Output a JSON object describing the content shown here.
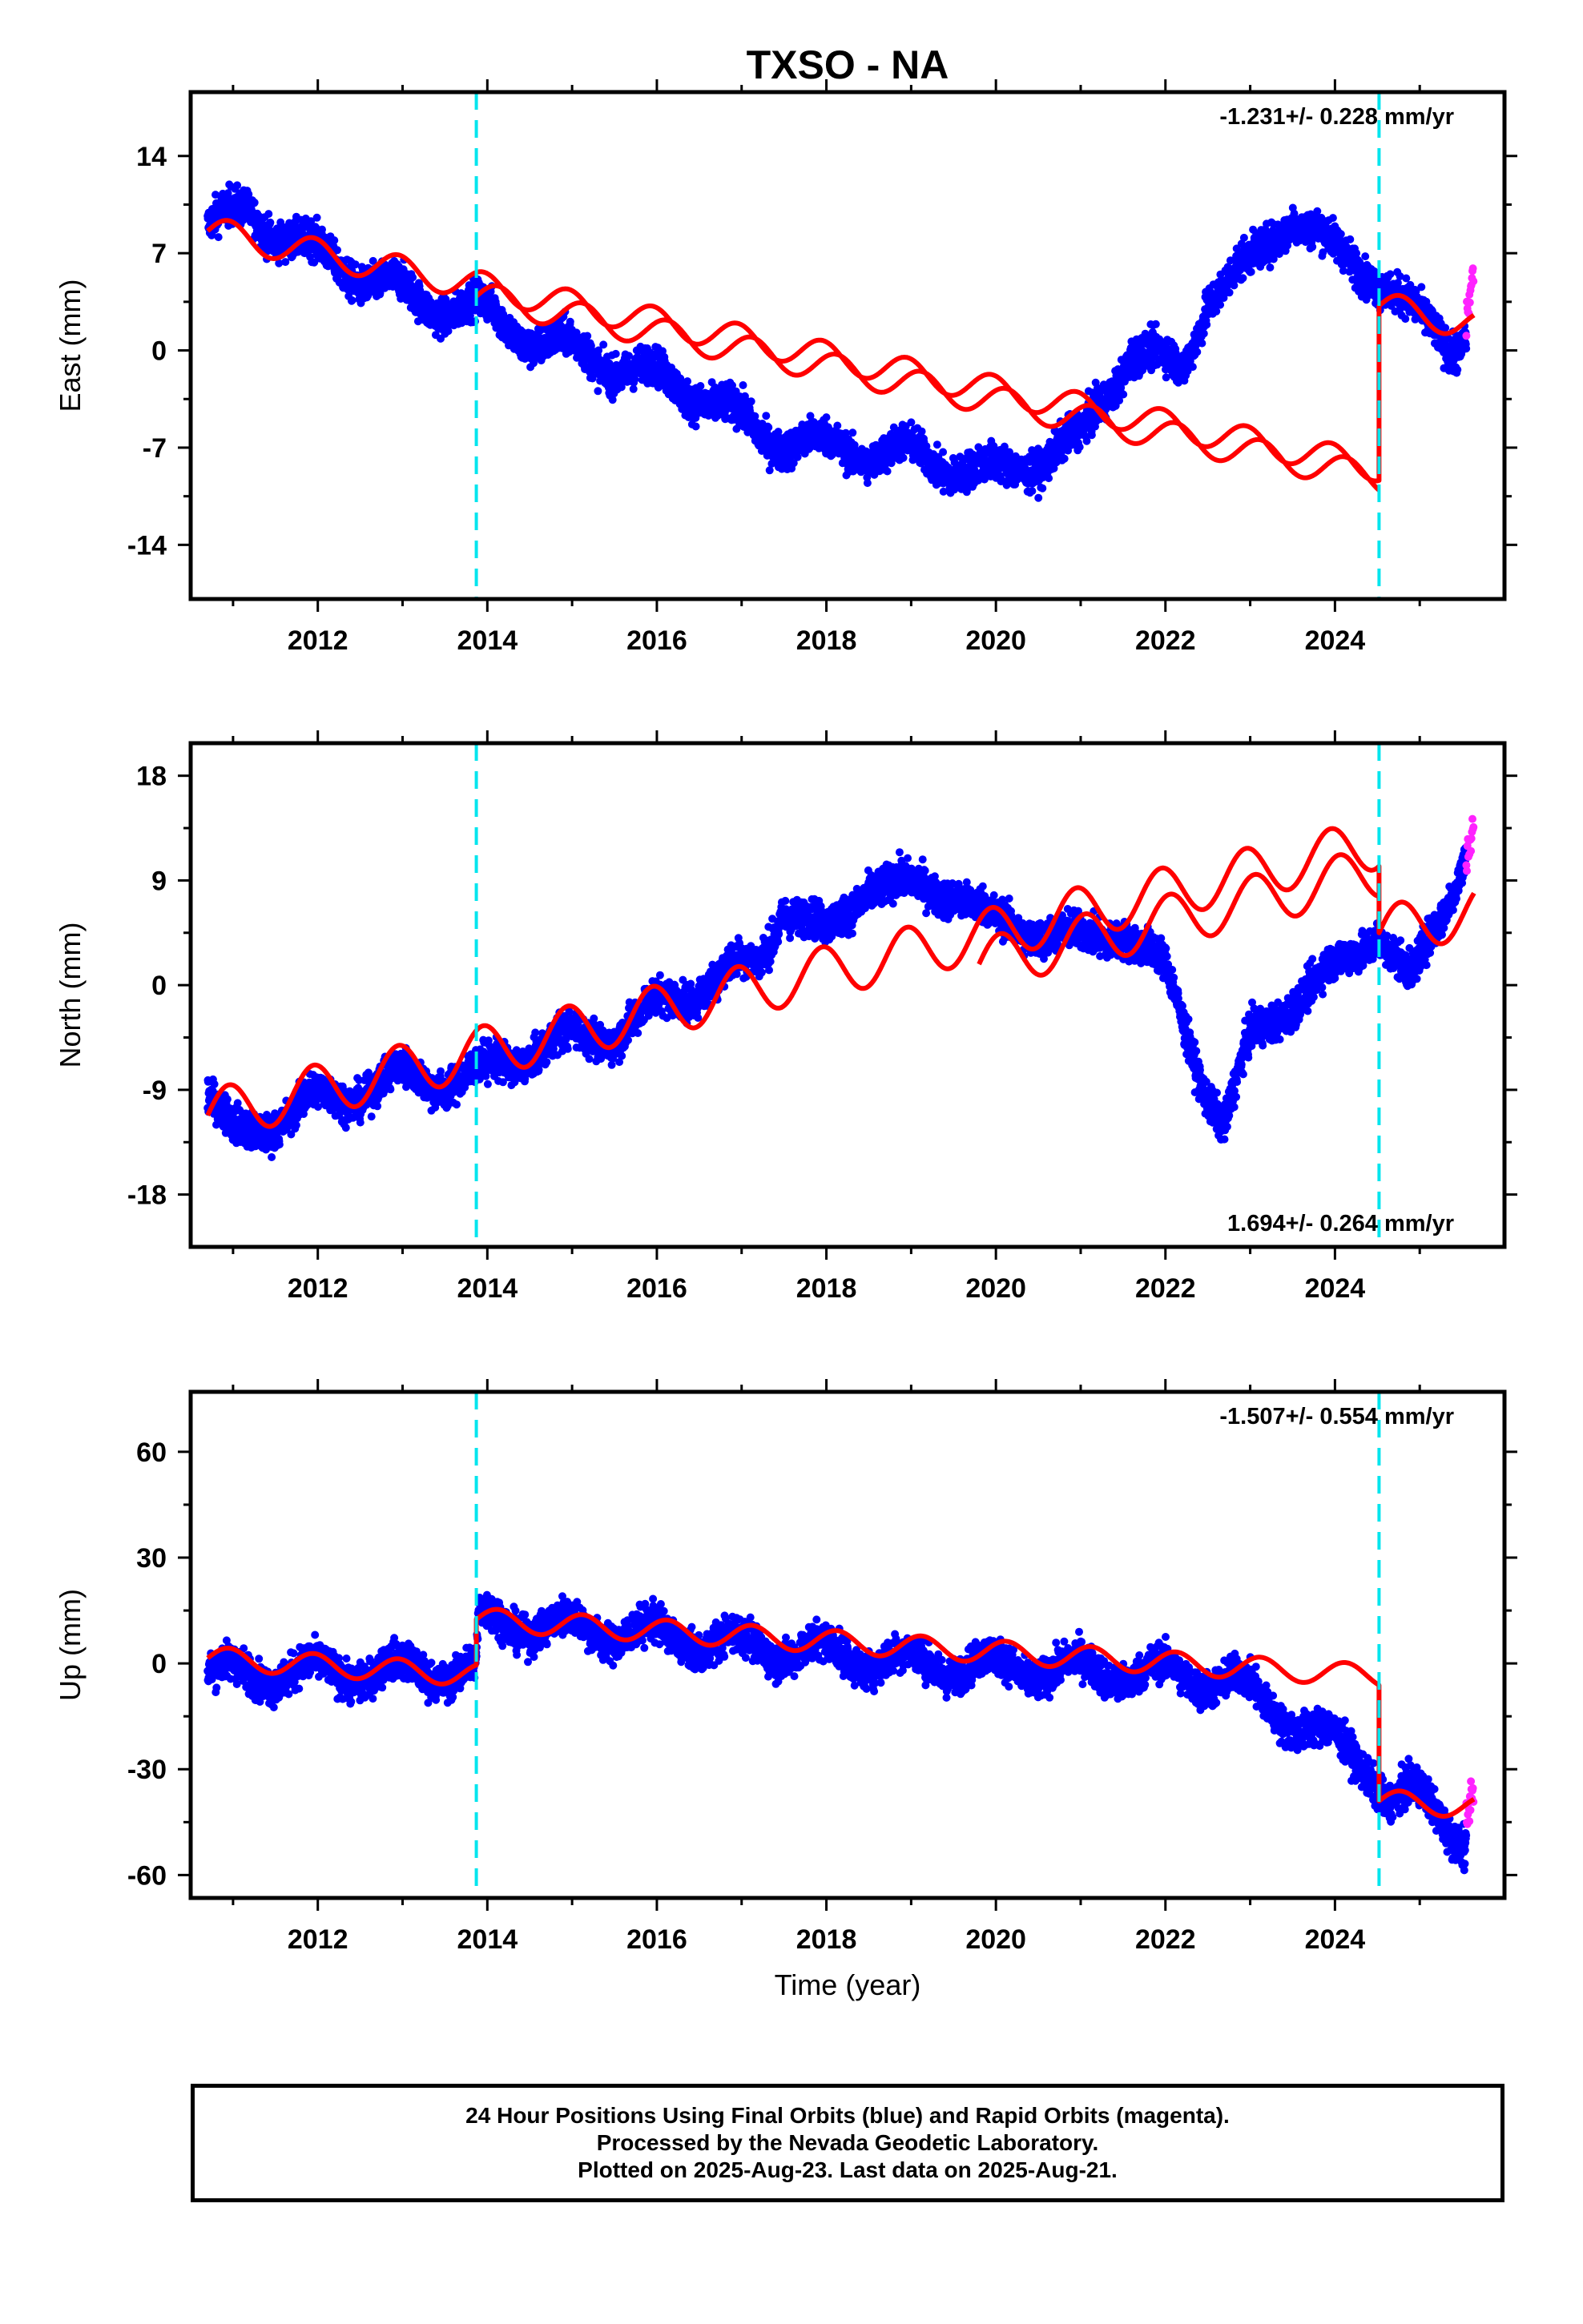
{
  "title": "TXSO - NA",
  "colors": {
    "final": "#0000ff",
    "rapid": "#ff22ff",
    "model": "#ff0000",
    "event": "#00e5ee",
    "frame": "#000000"
  },
  "xlabel": "Time (year)",
  "x_ticks": [
    "2012",
    "2014",
    "2016",
    "2018",
    "2020",
    "2022",
    "2024"
  ],
  "events": [
    2013.87,
    2024.52
  ],
  "chart_data": [
    {
      "type": "scatter",
      "component": "east",
      "ylabel": "East (mm)",
      "rate_label": "-1.231+/- 0.228 mm/yr",
      "rate_position": "top-right",
      "xlim": [
        2010.5,
        2026.0
      ],
      "ylim": [
        -17.9,
        18.6
      ],
      "y_ticks": [
        "14",
        "7",
        "0",
        "-7",
        "-14"
      ],
      "y_tick_values": [
        14,
        7,
        0,
        -7,
        -14
      ],
      "final_orbits_trend": [
        [
          2010.7,
          9
        ],
        [
          2011.2,
          10
        ],
        [
          2011.8,
          7.5
        ],
        [
          2012.5,
          5.5
        ],
        [
          2013.2,
          3.5
        ],
        [
          2013.87,
          3
        ],
        [
          2014.5,
          1
        ],
        [
          2015.5,
          -1
        ],
        [
          2016.5,
          -3
        ],
        [
          2017.2,
          -6
        ],
        [
          2018.0,
          -7
        ],
        [
          2019.0,
          -7.5
        ],
        [
          2020.0,
          -9
        ],
        [
          2021.0,
          -6.5
        ],
        [
          2021.3,
          -3
        ],
        [
          2021.6,
          0
        ],
        [
          2022.2,
          -1.5
        ],
        [
          2022.5,
          4
        ],
        [
          2023.0,
          6
        ],
        [
          2023.5,
          10
        ],
        [
          2024.0,
          7
        ],
        [
          2024.5,
          5.5
        ],
        [
          2025.0,
          2
        ],
        [
          2025.4,
          0.5
        ],
        [
          2025.55,
          1.5
        ]
      ],
      "rapid_orbits_trend": [
        [
          2025.55,
          2
        ],
        [
          2025.64,
          6
        ]
      ],
      "model_segments": [
        {
          "t0": 2010.7,
          "t1": 2024.52,
          "start": 8.6,
          "slope": -1.231,
          "amp": 1.05,
          "phase": 0.0
        },
        {
          "t0": 2024.52,
          "t1": 2025.64,
          "start": 3.2,
          "slope": -1.231,
          "amp": 1.05,
          "phase": 0.0
        }
      ],
      "model_extension": {
        "t0": 2013.87,
        "t1": 2024.52,
        "start": 3.9,
        "slope": -1.231,
        "amp": 1.05,
        "phase": 0.0
      }
    },
    {
      "type": "scatter",
      "component": "north",
      "ylabel": "North (mm)",
      "rate_label": "1.694+/- 0.264 mm/yr",
      "rate_position": "bottom-right",
      "xlim": [
        2010.5,
        2026.0
      ],
      "ylim": [
        -22.5,
        20.8
      ],
      "y_ticks": [
        "18",
        "9",
        "0",
        "-9",
        "-18"
      ],
      "y_tick_values": [
        18,
        9,
        0,
        -9,
        -18
      ],
      "final_orbits_trend": [
        [
          2010.7,
          -9.5
        ],
        [
          2011.0,
          -13
        ],
        [
          2012.0,
          -10
        ],
        [
          2013.0,
          -8
        ],
        [
          2013.87,
          -8
        ],
        [
          2014.5,
          -5.5
        ],
        [
          2015.5,
          -4
        ],
        [
          2016.5,
          0
        ],
        [
          2017.2,
          2
        ],
        [
          2017.5,
          7
        ],
        [
          2018.0,
          4
        ],
        [
          2018.5,
          9
        ],
        [
          2019.0,
          8
        ],
        [
          2019.5,
          8.5
        ],
        [
          2020.0,
          5
        ],
        [
          2020.5,
          5
        ],
        [
          2021.0,
          3.5
        ],
        [
          2021.5,
          5
        ],
        [
          2022.0,
          1
        ],
        [
          2022.5,
          -9
        ],
        [
          2022.7,
          -12
        ],
        [
          2023.0,
          -5
        ],
        [
          2023.5,
          -1
        ],
        [
          2024.0,
          1
        ],
        [
          2024.5,
          5
        ],
        [
          2024.9,
          0
        ],
        [
          2025.2,
          5
        ],
        [
          2025.55,
          12
        ]
      ],
      "rapid_orbits_trend": [
        [
          2025.55,
          11
        ],
        [
          2025.64,
          14
        ]
      ],
      "model_segments": [
        {
          "t0": 2010.7,
          "t1": 2024.52,
          "start": -11.2,
          "slope": 1.694,
          "amp": 2.2,
          "phase": 0.0
        },
        {
          "t0": 2024.52,
          "t1": 2025.64,
          "start": 4.5,
          "slope": 1.694,
          "amp": 2.2,
          "phase": 0.0
        }
      ],
      "model_extension": {
        "t0": 2019.8,
        "t1": 2024.52,
        "start": 1.8,
        "slope": 1.694,
        "amp": 2.2,
        "phase": 0.0
      }
    },
    {
      "type": "scatter",
      "component": "up",
      "ylabel": "Up (mm)",
      "rate_label": "-1.507+/- 0.554 mm/yr",
      "rate_position": "top-right",
      "xlim": [
        2010.5,
        2026.0
      ],
      "ylim": [
        -66.5,
        77.0
      ],
      "y_ticks": [
        "60",
        "30",
        "0",
        "-30",
        "-60"
      ],
      "y_tick_values": [
        60,
        30,
        0,
        -30,
        -60
      ],
      "final_orbits_trend": [
        [
          2010.7,
          -3
        ],
        [
          2013.87,
          -2
        ],
        [
          2013.9,
          12
        ],
        [
          2015.0,
          10
        ],
        [
          2016.0,
          8
        ],
        [
          2017.0,
          5
        ],
        [
          2018.0,
          3
        ],
        [
          2019.0,
          0
        ],
        [
          2020.0,
          -1
        ],
        [
          2021.0,
          -2
        ],
        [
          2022.0,
          -3
        ],
        [
          2022.8,
          -5
        ],
        [
          2023.2,
          -12
        ],
        [
          2023.8,
          -20
        ],
        [
          2024.3,
          -27
        ],
        [
          2024.52,
          -33
        ],
        [
          2024.6,
          -38
        ],
        [
          2025.0,
          -38
        ],
        [
          2025.55,
          -50
        ]
      ],
      "rapid_orbits_trend": [
        [
          2025.55,
          -45
        ],
        [
          2025.64,
          -35
        ]
      ],
      "model_segments": [
        {
          "t0": 2010.7,
          "t1": 2013.87,
          "start": 1.5,
          "slope": -1.507,
          "amp": 3.2,
          "phase": 0.0
        },
        {
          "t0": 2013.87,
          "t1": 2024.52,
          "start": 12.5,
          "slope": -1.507,
          "amp": 3.2,
          "phase": 0.0
        },
        {
          "t0": 2024.52,
          "t1": 2025.64,
          "start": -39,
          "slope": -1.507,
          "amp": 3.2,
          "phase": 0.0
        }
      ],
      "model_extension": null
    }
  ],
  "footer": {
    "line1": "24 Hour Positions Using Final Orbits (blue) and Rapid Orbits (magenta).",
    "line2": "Processed by the Nevada Geodetic Laboratory.",
    "line3": "Plotted on 2025-Aug-23. Last data on 2025-Aug-21."
  }
}
